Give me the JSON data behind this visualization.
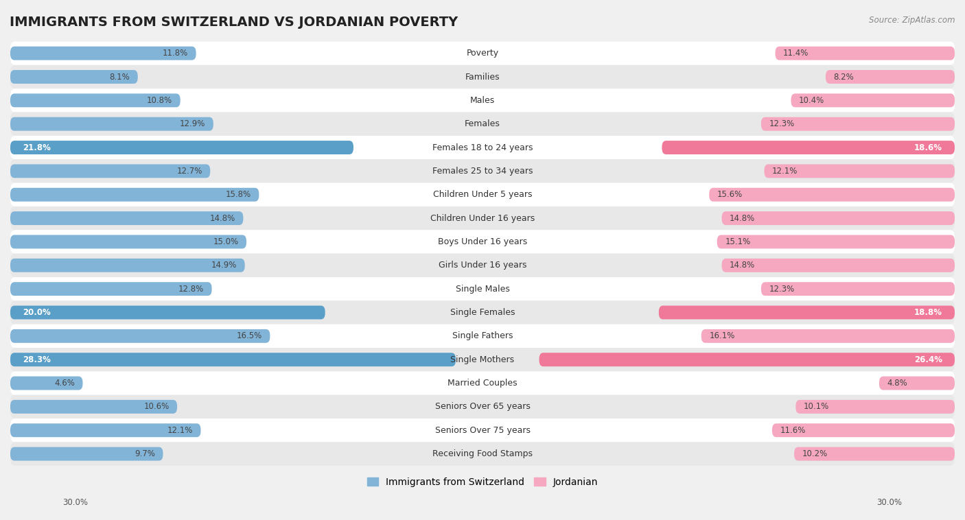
{
  "title": "IMMIGRANTS FROM SWITZERLAND VS JORDANIAN POVERTY",
  "source": "Source: ZipAtlas.com",
  "categories": [
    "Poverty",
    "Families",
    "Males",
    "Females",
    "Females 18 to 24 years",
    "Females 25 to 34 years",
    "Children Under 5 years",
    "Children Under 16 years",
    "Boys Under 16 years",
    "Girls Under 16 years",
    "Single Males",
    "Single Females",
    "Single Fathers",
    "Single Mothers",
    "Married Couples",
    "Seniors Over 65 years",
    "Seniors Over 75 years",
    "Receiving Food Stamps"
  ],
  "switzerland_values": [
    11.8,
    8.1,
    10.8,
    12.9,
    21.8,
    12.7,
    15.8,
    14.8,
    15.0,
    14.9,
    12.8,
    20.0,
    16.5,
    28.3,
    4.6,
    10.6,
    12.1,
    9.7
  ],
  "jordanian_values": [
    11.4,
    8.2,
    10.4,
    12.3,
    18.6,
    12.1,
    15.6,
    14.8,
    15.1,
    14.8,
    12.3,
    18.8,
    16.1,
    26.4,
    4.8,
    10.1,
    11.6,
    10.2
  ],
  "switzerland_color": "#82b4d8",
  "jordanian_color": "#f5a8c0",
  "switzerland_highlight_color": "#5a9fc8",
  "jordanian_highlight_color": "#f07898",
  "highlight_rows": [
    4,
    11,
    13
  ],
  "bar_height": 0.58,
  "xlim": 30.0,
  "background_color": "#f0f0f0",
  "row_bg_even": "#ffffff",
  "row_bg_odd": "#e8e8e8",
  "title_fontsize": 14,
  "label_fontsize": 9,
  "value_fontsize": 8.5,
  "legend_fontsize": 10
}
